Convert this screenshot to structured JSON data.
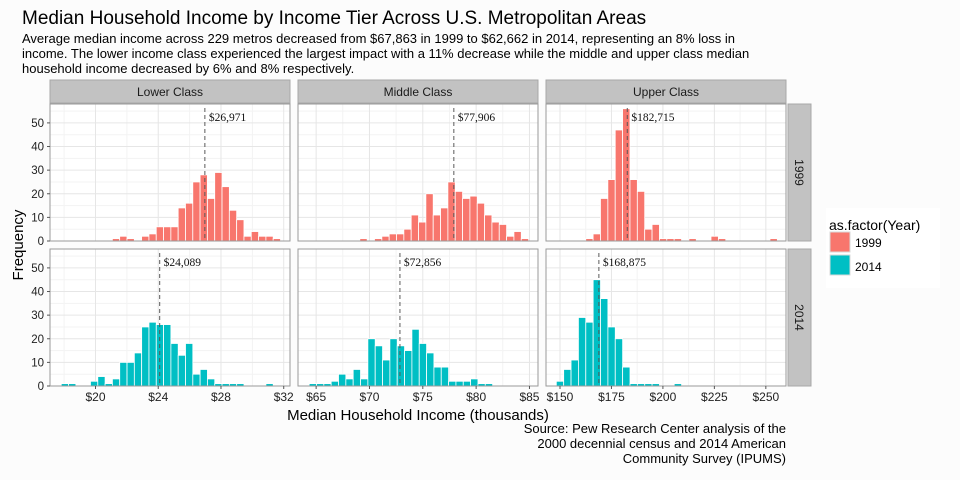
{
  "chart_data": {
    "type": "bar",
    "subtype": "faceted-histogram",
    "title": "Median Household Income by Income Tier Across U.S. Metropolitan Areas",
    "subtitle_lines": [
      "Average median income across 229 metros decreased from $67,863 in 1999 to $62,662 in 2014, representing an 8% loss in",
      "income. The lower income class experienced the largest impact with a 11% decrease while the middle and upper class median",
      "household income decreased by 6% and 8% respectively."
    ],
    "xlabel": "Median Household Income (thousands)",
    "ylabel": "Frequency",
    "source_lines": [
      "Source: Pew Research Center analysis of the",
      "2000 decennial census and 2014 American",
      "Community Survey (IPUMS)"
    ],
    "legend": {
      "title": "as.factor(Year)",
      "placement": "right",
      "entries": [
        {
          "label": "1999",
          "color": "#F8766D"
        },
        {
          "label": "2014",
          "color": "#00BFC4"
        }
      ]
    },
    "ylim": [
      0,
      58
    ],
    "yticks": [
      0,
      10,
      20,
      30,
      40,
      50
    ],
    "grid": true,
    "rows": [
      "1999",
      "2014"
    ],
    "columns": [
      {
        "name": "Lower Class",
        "xlim": [
          17.1,
          32.4
        ],
        "xticks": [
          20,
          24,
          28,
          32
        ],
        "xtick_labels": [
          "$20",
          "$24",
          "$28",
          "$32"
        ],
        "bin_width": 0.466,
        "series": {
          "1999": {
            "first_bin_center": 21.31,
            "counts": [
              1,
              2,
              1,
              0,
              2,
              3,
              6,
              6,
              6,
              14,
              16,
              25,
              28,
              18,
              29,
              23,
              13,
              9,
              2,
              4,
              2,
              2,
              1
            ],
            "median": 26.971,
            "median_label": "$26,971"
          },
          "2014": {
            "first_bin_center": 18.05,
            "counts": [
              1,
              1,
              0,
              0,
              2,
              4,
              1,
              3,
              10,
              10,
              14,
              25,
              27,
              26,
              26,
              18,
              13,
              18,
              5,
              7,
              3,
              1,
              1,
              1,
              1,
              0,
              0,
              0,
              1
            ],
            "median": 24.089,
            "median_label": "$24,089"
          }
        }
      },
      {
        "name": "Middle Class",
        "xlim": [
          63.3,
          85.8
        ],
        "xticks": [
          65,
          70,
          75,
          80,
          85
        ],
        "xtick_labels": [
          "$65",
          "$70",
          "$75",
          "$80",
          "$85"
        ],
        "bin_width": 0.688,
        "series": {
          "1999": {
            "first_bin_center": 69.44,
            "counts": [
              1,
              0,
              1,
              2,
              3,
              3,
              5,
              11,
              8,
              20,
              11,
              14,
              25,
              21,
              18,
              19,
              16,
              11,
              8,
              7,
              2,
              4,
              1
            ],
            "median": 77.906,
            "median_label": "$77,906"
          },
          "2014": {
            "first_bin_center": 64.69,
            "counts": [
              1,
              1,
              1,
              2,
              5,
              3,
              7,
              3,
              20,
              17,
              11,
              20,
              17,
              15,
              24,
              18,
              14,
              8,
              8,
              2,
              2,
              2,
              3,
              1,
              1
            ],
            "median": 72.856,
            "median_label": "$72,856"
          }
        }
      },
      {
        "name": "Upper Class",
        "xlim": [
          143.2,
          259.8
        ],
        "xticks": [
          150,
          175,
          200,
          225,
          250
        ],
        "xtick_labels": [
          "$150",
          "$175",
          "$200",
          "$225",
          "$250"
        ],
        "bin_width": 3.58,
        "series": {
          "1999": {
            "first_bin_center": 164.3,
            "counts": [
              1,
              3,
              18,
              26,
              47,
              56,
              26,
              21,
              5,
              7,
              1,
              1,
              1,
              0,
              1,
              0,
              0,
              2,
              1,
              0,
              0,
              0,
              0,
              0,
              0,
              1
            ],
            "median": 182.715,
            "median_label": "$182,715"
          },
          "2014": {
            "first_bin_center": 150.0,
            "counts": [
              2,
              7,
              11,
              29,
              27,
              45,
              37,
              25,
              20,
              8,
              1,
              1,
              1,
              1,
              0,
              0,
              1
            ],
            "median": 168.875,
            "median_label": "$168,875"
          }
        }
      }
    ]
  }
}
